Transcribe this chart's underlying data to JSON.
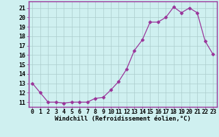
{
  "hours": [
    0,
    1,
    2,
    3,
    4,
    5,
    6,
    7,
    8,
    9,
    10,
    11,
    12,
    13,
    14,
    15,
    16,
    17,
    18,
    19,
    20,
    21,
    22,
    23
  ],
  "values": [
    13,
    12,
    11,
    11,
    10.9,
    11,
    11,
    11,
    11.4,
    11.5,
    12.3,
    13.2,
    14.5,
    16.5,
    17.6,
    19.5,
    19.5,
    20,
    21.1,
    20.5,
    21,
    20.5,
    17.5,
    16.1
  ],
  "line_color": "#993399",
  "marker": "D",
  "marker_size": 2.5,
  "bg_color": "#cff0f0",
  "grid_color": "#aacccc",
  "ylabel_values": [
    11,
    12,
    13,
    14,
    15,
    16,
    17,
    18,
    19,
    20,
    21
  ],
  "ylim": [
    10.5,
    21.7
  ],
  "xlim": [
    -0.5,
    23.5
  ],
  "xlabel": "Windchill (Refroidissement éolien,°C)",
  "xlabel_fontsize": 6.5,
  "tick_fontsize": 6.0
}
